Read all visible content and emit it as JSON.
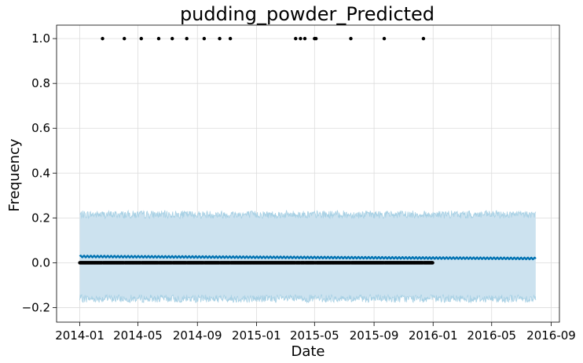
{
  "chart_data": {
    "type": "scatter",
    "title": "pudding_powder_Predicted",
    "xlabel": "Date",
    "ylabel": "Frequency",
    "x_range": [
      "2013-11-14",
      "2016-09-18"
    ],
    "ylim": [
      -0.265,
      1.06
    ],
    "grid": true,
    "x_ticks": [
      "2014-01",
      "2014-05",
      "2014-09",
      "2015-01",
      "2015-05",
      "2015-09",
      "2016-01",
      "2016-05",
      "2016-09"
    ],
    "y_ticks": [
      "−0.2",
      "0.0",
      "0.2",
      "0.4",
      "0.6",
      "0.8",
      "1.0"
    ],
    "y_tick_values": [
      -0.2,
      0.0,
      0.2,
      0.4,
      0.6,
      0.8,
      1.0
    ],
    "history_range": [
      "2014-01-01",
      "2015-12-31"
    ],
    "forecast_range": [
      "2014-01-01",
      "2016-07-31"
    ],
    "forecast": {
      "yhat_start": 0.028,
      "yhat_end": 0.019,
      "upper_mean": 0.215,
      "lower_mean": -0.16
    },
    "observed_zero_value": 0.0,
    "observed_ones": [
      "2014-02-17",
      "2014-04-03",
      "2014-05-08",
      "2014-06-13",
      "2014-07-11",
      "2014-08-10",
      "2014-09-15",
      "2014-10-17",
      "2014-11-08",
      "2015-03-23",
      "2015-04-02",
      "2015-04-11",
      "2015-05-01",
      "2015-05-04",
      "2015-07-15",
      "2015-09-22",
      "2015-12-12"
    ],
    "colors": {
      "band": "#cce2ef",
      "band_edge": "#a7d0e4",
      "forecast_line": "#0072b2",
      "points": "#000000",
      "grid": "#dcdcdc"
    }
  }
}
